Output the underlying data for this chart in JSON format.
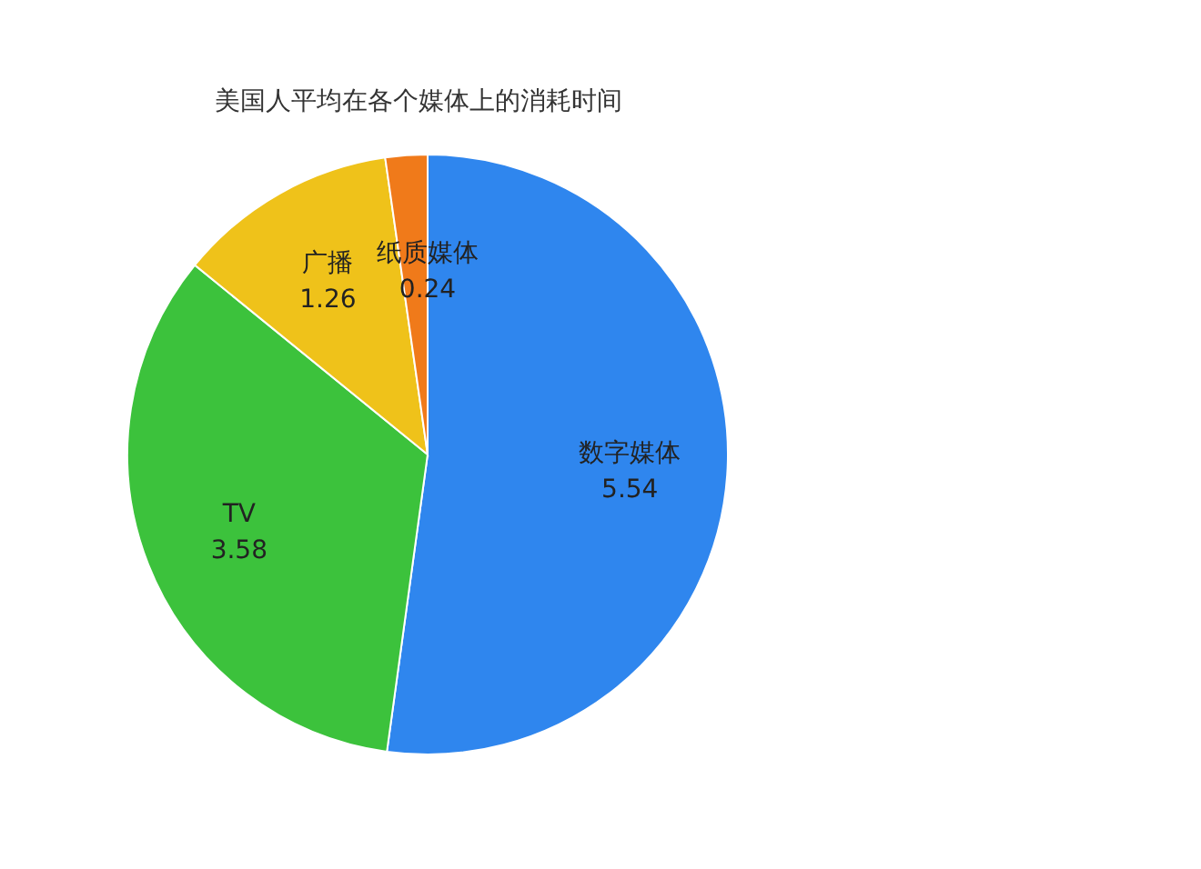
{
  "chart_data": {
    "type": "pie",
    "title": "美国人平均在各个媒体上的消耗时间",
    "categories": [
      "数字媒体",
      "TV",
      "广播",
      "纸质媒体"
    ],
    "values": [
      5.54,
      3.58,
      1.26,
      0.24
    ],
    "colors": [
      "#2f86ee",
      "#3cc23c",
      "#efc21a",
      "#f07a1a"
    ],
    "data_labels": true,
    "legend": false
  }
}
